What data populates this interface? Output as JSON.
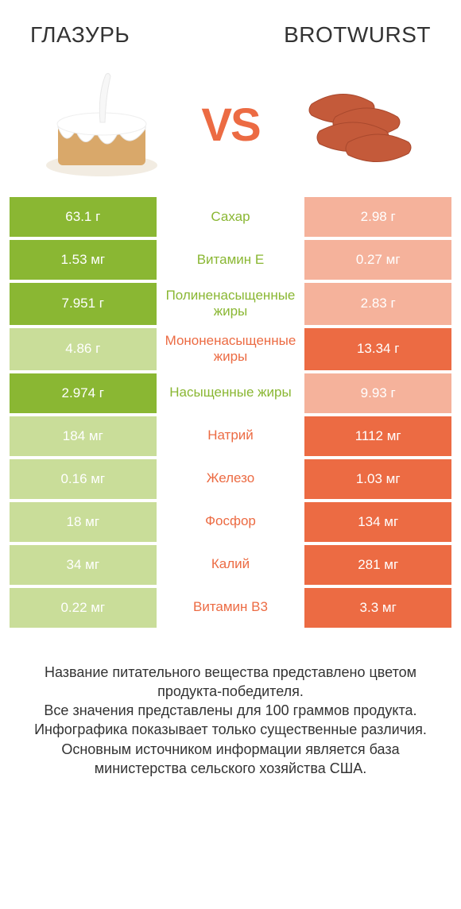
{
  "header": {
    "left_title": "ГЛАЗУРЬ",
    "right_title": "BROTWURST"
  },
  "vs_label": "VS",
  "colors": {
    "left_win": "#8ab733",
    "left_lose": "#c9dd99",
    "right_win": "#ec6b43",
    "right_lose": "#f5b29b",
    "mid_green": "#8ab733",
    "mid_orange": "#ec6b43"
  },
  "rows": [
    {
      "left": "63.1 г",
      "mid": "Сахар",
      "right": "2.98 г",
      "winner": "left"
    },
    {
      "left": "1.53 мг",
      "mid": "Витамин E",
      "right": "0.27 мг",
      "winner": "left"
    },
    {
      "left": "7.951 г",
      "mid": "Полиненасыщенные жиры",
      "right": "2.83 г",
      "winner": "left"
    },
    {
      "left": "4.86 г",
      "mid": "Мононенасыщенные жиры",
      "right": "13.34 г",
      "winner": "right"
    },
    {
      "left": "2.974 г",
      "mid": "Насыщенные жиры",
      "right": "9.93 г",
      "winner": "left"
    },
    {
      "left": "184 мг",
      "mid": "Натрий",
      "right": "1112 мг",
      "winner": "right"
    },
    {
      "left": "0.16 мг",
      "mid": "Железо",
      "right": "1.03 мг",
      "winner": "right"
    },
    {
      "left": "18 мг",
      "mid": "Фосфор",
      "right": "134 мг",
      "winner": "right"
    },
    {
      "left": "34 мг",
      "mid": "Калий",
      "right": "281 мг",
      "winner": "right"
    },
    {
      "left": "0.22 мг",
      "mid": "Витамин B3",
      "right": "3.3 мг",
      "winner": "right"
    }
  ],
  "footer": [
    "Название питательного вещества представлено цветом продукта-победителя.",
    "Все значения представлены для 100 граммов продукта.",
    "Инфографика показывает только существенные различия.",
    "Основным источником информации является база министерства сельского хозяйства США."
  ]
}
